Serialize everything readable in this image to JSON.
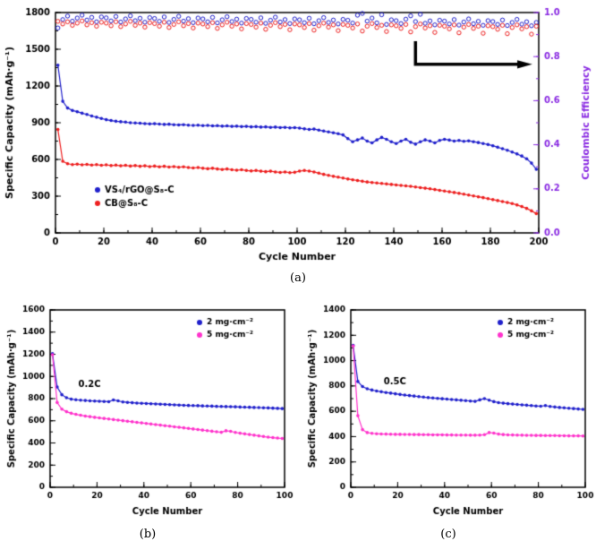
{
  "figure": {
    "panel_labels": [
      "(a)",
      "(b)",
      "(c)"
    ],
    "accent_purple": "#8a2be2",
    "series_blue": "#2020cc",
    "series_red": "#ee2020",
    "series_magenta": "#ff33cc"
  },
  "chart_data": [
    {
      "id": "panel-a",
      "type": "scatter",
      "xlabel": "Cycle Number",
      "ylabel": "Specific Capacity (mAh·g⁻¹)",
      "y2label": "Coulombic Efficiency",
      "y2color": "#8a2be2",
      "xlim": [
        0,
        200
      ],
      "ylim": [
        0,
        1800
      ],
      "y2lim": [
        0.0,
        1.0
      ],
      "xticks": [
        0,
        20,
        40,
        60,
        80,
        100,
        120,
        140,
        160,
        180,
        200
      ],
      "yticks": [
        0,
        300,
        600,
        900,
        1200,
        1500,
        1800
      ],
      "y2ticks": [
        0.0,
        0.2,
        0.4,
        0.6,
        0.8,
        1.0
      ],
      "y2decimals": 1,
      "xminor": 10,
      "yminor": 150,
      "y2minor": 0.1,
      "legend": {
        "position": "bottom-left"
      },
      "x": [
        1,
        3,
        5,
        7,
        9,
        11,
        13,
        15,
        17,
        19,
        21,
        23,
        25,
        27,
        29,
        31,
        33,
        35,
        37,
        39,
        41,
        43,
        45,
        47,
        49,
        51,
        53,
        55,
        57,
        59,
        61,
        63,
        65,
        67,
        69,
        71,
        73,
        75,
        77,
        79,
        81,
        83,
        85,
        87,
        89,
        91,
        93,
        95,
        97,
        99,
        101,
        103,
        105,
        107,
        109,
        111,
        113,
        115,
        117,
        119,
        121,
        123,
        125,
        127,
        129,
        131,
        133,
        135,
        137,
        139,
        141,
        143,
        145,
        147,
        149,
        151,
        153,
        155,
        157,
        159,
        161,
        163,
        165,
        167,
        169,
        171,
        173,
        175,
        177,
        179,
        181,
        183,
        185,
        187,
        189,
        191,
        193,
        195,
        197,
        199
      ],
      "series": [
        {
          "name": "VS₄/rGO@S₈-C",
          "axis": "y",
          "marker": "filled",
          "color": "#2020cc",
          "values": [
            1370,
            1075,
            1020,
            1000,
            990,
            978,
            968,
            955,
            945,
            935,
            925,
            918,
            912,
            908,
            905,
            900,
            898,
            896,
            893,
            890,
            892,
            889,
            886,
            888,
            884,
            882,
            884,
            880,
            878,
            880,
            876,
            878,
            874,
            876,
            872,
            874,
            870,
            872,
            868,
            870,
            866,
            868,
            864,
            866,
            862,
            864,
            860,
            862,
            858,
            860,
            856,
            850,
            845,
            848,
            840,
            832,
            825,
            818,
            810,
            800,
            770,
            745,
            760,
            775,
            750,
            735,
            760,
            780,
            765,
            745,
            730,
            750,
            765,
            740,
            725,
            745,
            760,
            750,
            735,
            755,
            765,
            758,
            750,
            755,
            748,
            752,
            745,
            738,
            730,
            722,
            712,
            700,
            688,
            675,
            660,
            645,
            628,
            605,
            570,
            520
          ]
        },
        {
          "name": "CB@S₈-C",
          "axis": "y",
          "marker": "filled",
          "color": "#ee2020",
          "values": [
            845,
            585,
            565,
            558,
            562,
            556,
            560,
            554,
            558,
            552,
            556,
            550,
            554,
            548,
            552,
            546,
            550,
            544,
            548,
            542,
            546,
            540,
            544,
            538,
            542,
            536,
            540,
            534,
            530,
            534,
            528,
            524,
            528,
            522,
            518,
            522,
            516,
            512,
            516,
            510,
            506,
            510,
            504,
            500,
            504,
            498,
            494,
            498,
            492,
            495,
            505,
            510,
            505,
            498,
            488,
            478,
            470,
            462,
            455,
            448,
            440,
            434,
            428,
            422,
            416,
            412,
            408,
            404,
            400,
            396,
            392,
            388,
            384,
            380,
            375,
            370,
            365,
            360,
            354,
            348,
            342,
            336,
            330,
            323,
            316,
            309,
            302,
            295,
            288,
            280,
            272,
            264,
            256,
            248,
            240,
            228,
            215,
            200,
            180,
            158
          ]
        },
        {
          "axis": "y2",
          "marker": "open",
          "color": "#2020cc",
          "legend": false,
          "values": [
            0.93,
            0.968,
            0.984,
            0.961,
            0.975,
            0.988,
            0.966,
            0.978,
            0.958,
            0.98,
            0.976,
            0.962,
            0.982,
            0.957,
            0.971,
            0.985,
            0.963,
            0.974,
            0.956,
            0.977,
            0.973,
            0.96,
            0.98,
            0.955,
            0.969,
            0.983,
            0.961,
            0.972,
            0.954,
            0.975,
            0.971,
            0.958,
            0.978,
            0.953,
            0.967,
            0.981,
            0.959,
            0.97,
            0.952,
            0.973,
            0.969,
            0.956,
            0.976,
            0.951,
            0.965,
            0.979,
            0.957,
            0.968,
            0.95,
            0.971,
            0.967,
            0.954,
            0.974,
            0.949,
            0.963,
            0.977,
            0.955,
            0.966,
            0.948,
            0.969,
            0.965,
            0.952,
            0.988,
            0.996,
            0.961,
            0.975,
            0.953,
            0.99,
            0.946,
            0.967,
            0.963,
            0.95,
            0.97,
            0.985,
            0.959,
            0.992,
            0.951,
            0.962,
            0.944,
            0.965,
            0.961,
            0.948,
            0.968,
            0.943,
            0.957,
            0.971,
            0.949,
            0.96,
            0.942,
            0.963,
            0.959,
            0.946,
            0.966,
            0.941,
            0.955,
            0.969,
            0.947,
            0.958,
            0.94,
            0.955
          ]
        },
        {
          "axis": "y2",
          "marker": "open",
          "color": "#ee2020",
          "legend": false,
          "values": [
            0.96,
            0.948,
            0.958,
            0.942,
            0.952,
            0.962,
            0.944,
            0.954,
            0.938,
            0.956,
            0.952,
            0.94,
            0.958,
            0.936,
            0.948,
            0.96,
            0.942,
            0.952,
            0.934,
            0.954,
            0.95,
            0.938,
            0.956,
            0.932,
            0.946,
            0.958,
            0.94,
            0.95,
            0.93,
            0.952,
            0.948,
            0.936,
            0.954,
            0.928,
            0.944,
            0.956,
            0.938,
            0.948,
            0.926,
            0.95,
            0.946,
            0.934,
            0.952,
            0.924,
            0.942,
            0.954,
            0.936,
            0.946,
            0.922,
            0.948,
            0.944,
            0.932,
            0.95,
            0.92,
            0.94,
            0.952,
            0.934,
            0.944,
            0.918,
            0.946,
            0.942,
            0.93,
            0.948,
            0.916,
            0.938,
            0.95,
            0.932,
            0.942,
            0.914,
            0.944,
            0.94,
            0.928,
            0.946,
            0.912,
            0.936,
            0.948,
            0.93,
            0.94,
            0.91,
            0.942,
            0.938,
            0.926,
            0.944,
            0.908,
            0.934,
            0.946,
            0.928,
            0.938,
            0.906,
            0.94,
            0.936,
            0.924,
            0.942,
            0.904,
            0.932,
            0.944,
            0.926,
            0.936,
            0.902,
            0.938
          ]
        }
      ],
      "annotations": [
        {
          "type": "arrow",
          "axis": "y2",
          "points": [
            [
              149,
              0.87
            ],
            [
              149,
              0.765
            ],
            [
              194,
              0.765
            ]
          ],
          "width": 3.5
        }
      ]
    },
    {
      "id": "panel-b",
      "type": "scatter",
      "xlabel": "Cycle Number",
      "ylabel": "Specific Capacity (mAh·g⁻¹)",
      "xlim": [
        0,
        100
      ],
      "ylim": [
        0,
        1600
      ],
      "xticks": [
        0,
        20,
        40,
        60,
        80,
        100
      ],
      "yticks": [
        0,
        200,
        400,
        600,
        800,
        1000,
        1200,
        1400,
        1600
      ],
      "xminor": 10,
      "yminor": 100,
      "legend": {
        "position": "top-right"
      },
      "x": [
        1,
        3,
        5,
        7,
        9,
        11,
        13,
        15,
        17,
        19,
        21,
        23,
        25,
        27,
        29,
        31,
        33,
        35,
        37,
        39,
        41,
        43,
        45,
        47,
        49,
        51,
        53,
        55,
        57,
        59,
        61,
        63,
        65,
        67,
        69,
        71,
        73,
        75,
        77,
        79,
        81,
        83,
        85,
        87,
        89,
        91,
        93,
        95,
        97,
        99
      ],
      "series": [
        {
          "name": "2 mg·cm⁻²",
          "axis": "y",
          "marker": "filled",
          "color": "#2020cc",
          "values": [
            1205,
            905,
            835,
            808,
            795,
            790,
            786,
            783,
            780,
            778,
            776,
            774,
            772,
            788,
            780,
            770,
            766,
            763,
            760,
            758,
            756,
            754,
            752,
            750,
            748,
            746,
            744,
            742,
            740,
            738,
            737,
            736,
            734,
            733,
            732,
            730,
            729,
            728,
            727,
            726,
            724,
            723,
            722,
            720,
            719,
            717,
            716,
            714,
            712,
            710
          ]
        },
        {
          "name": "5 mg·cm⁻²",
          "axis": "y",
          "marker": "filled",
          "color": "#ff33cc",
          "values": [
            1195,
            765,
            705,
            682,
            668,
            658,
            650,
            643,
            637,
            631,
            626,
            621,
            616,
            611,
            606,
            601,
            596,
            591,
            586,
            581,
            576,
            571,
            566,
            561,
            556,
            551,
            546,
            541,
            536,
            531,
            526,
            521,
            516,
            511,
            506,
            501,
            496,
            510,
            505,
            495,
            488,
            482,
            476,
            470,
            464,
            458,
            452,
            448,
            444,
            441
          ]
        }
      ],
      "annotations": [
        {
          "type": "text",
          "text": "0.2C",
          "x": 12,
          "y": 930
        }
      ]
    },
    {
      "id": "panel-c",
      "type": "scatter",
      "xlabel": "Cycle Number",
      "ylabel": "Specific Capacity (mAh·g⁻¹)",
      "xlim": [
        0,
        100
      ],
      "ylim": [
        0,
        1400
      ],
      "xticks": [
        0,
        20,
        40,
        60,
        80,
        100
      ],
      "yticks": [
        0,
        200,
        400,
        600,
        800,
        1000,
        1200,
        1400
      ],
      "xminor": 10,
      "yminor": 100,
      "legend": {
        "position": "top-right"
      },
      "x": [
        1,
        3,
        5,
        7,
        9,
        11,
        13,
        15,
        17,
        19,
        21,
        23,
        25,
        27,
        29,
        31,
        33,
        35,
        37,
        39,
        41,
        43,
        45,
        47,
        49,
        51,
        53,
        55,
        57,
        59,
        61,
        63,
        65,
        67,
        69,
        71,
        73,
        75,
        77,
        79,
        81,
        83,
        85,
        87,
        89,
        91,
        93,
        95,
        97,
        99
      ],
      "series": [
        {
          "name": "2 mg·cm⁻²",
          "axis": "y",
          "marker": "filled",
          "color": "#2020cc",
          "values": [
            1120,
            835,
            795,
            778,
            768,
            760,
            754,
            748,
            743,
            738,
            733,
            728,
            724,
            720,
            716,
            712,
            708,
            705,
            702,
            699,
            696,
            693,
            690,
            687,
            684,
            681,
            678,
            690,
            700,
            688,
            676,
            668,
            664,
            660,
            657,
            654,
            651,
            648,
            645,
            642,
            640,
            645,
            638,
            634,
            630,
            627,
            624,
            621,
            618,
            615
          ]
        },
        {
          "name": "5 mg·cm⁻²",
          "axis": "y",
          "marker": "filled",
          "color": "#ff33cc",
          "values": [
            1115,
            565,
            455,
            432,
            426,
            423,
            421,
            420,
            419,
            418,
            418,
            417,
            417,
            416,
            416,
            415,
            415,
            414,
            414,
            414,
            413,
            413,
            412,
            412,
            412,
            411,
            411,
            412,
            415,
            432,
            428,
            420,
            416,
            414,
            413,
            412,
            411,
            410,
            410,
            409,
            409,
            408,
            408,
            408,
            407,
            407,
            406,
            406,
            406,
            405
          ]
        }
      ],
      "annotations": [
        {
          "type": "text",
          "text": "0.5C",
          "x": 14,
          "y": 835
        }
      ]
    }
  ]
}
